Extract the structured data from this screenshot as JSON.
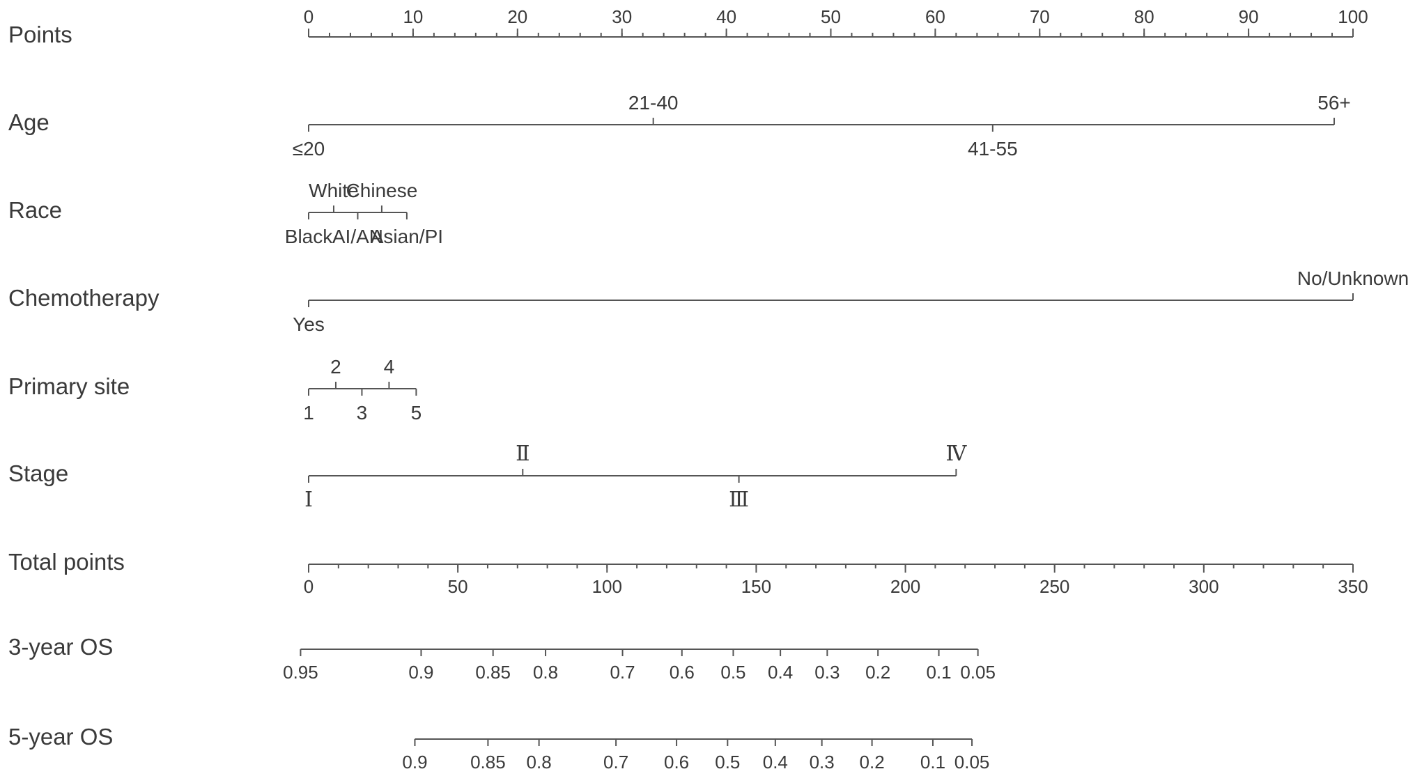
{
  "chart_data": {
    "type": "nomogram",
    "rows": [
      {
        "label": "Points",
        "kind": "points",
        "min": 0,
        "max": 100,
        "major_ticks": [
          "0",
          "10",
          "20",
          "30",
          "40",
          "50",
          "60",
          "70",
          "80",
          "90",
          "100"
        ],
        "minor_step": 2
      },
      {
        "label": "Age",
        "kind": "variable",
        "levels": [
          {
            "label": "≤20",
            "points": 0,
            "side": "below"
          },
          {
            "label": "21-40",
            "points": 33,
            "side": "above"
          },
          {
            "label": "41-55",
            "points": 65.5,
            "side": "below"
          },
          {
            "label": "56+",
            "points": 98.2,
            "side": "above"
          }
        ]
      },
      {
        "label": "Race",
        "kind": "variable",
        "levels": [
          {
            "label": "Black",
            "points": 0,
            "side": "below"
          },
          {
            "label": "White",
            "points": 2.4,
            "side": "above"
          },
          {
            "label": "AI/AN",
            "points": 4.7,
            "side": "below"
          },
          {
            "label": "Chinese",
            "points": 7.0,
            "side": "above"
          },
          {
            "label": "Asian/PI",
            "points": 9.4,
            "side": "below"
          }
        ]
      },
      {
        "label": "Chemotherapy",
        "kind": "variable",
        "levels": [
          {
            "label": "Yes",
            "points": 0,
            "side": "below"
          },
          {
            "label": "No/Unknown",
            "points": 100,
            "side": "above"
          }
        ]
      },
      {
        "label": "Primary site",
        "kind": "variable",
        "levels": [
          {
            "label": "1",
            "points": 0,
            "side": "below"
          },
          {
            "label": "2",
            "points": 2.6,
            "side": "above"
          },
          {
            "label": "3",
            "points": 5.1,
            "side": "below"
          },
          {
            "label": "4",
            "points": 7.7,
            "side": "above"
          },
          {
            "label": "5",
            "points": 10.3,
            "side": "below"
          }
        ]
      },
      {
        "label": "Stage",
        "kind": "variable",
        "levels": [
          {
            "label": "Ⅰ",
            "points": 0,
            "side": "below"
          },
          {
            "label": "Ⅱ",
            "points": 20.5,
            "side": "above"
          },
          {
            "label": "Ⅲ",
            "points": 41.2,
            "side": "below"
          },
          {
            "label": "Ⅳ",
            "points": 62,
            "side": "above"
          }
        ]
      },
      {
        "label": "Total points",
        "kind": "total",
        "min": 0,
        "max": 350,
        "major_ticks": [
          "0",
          "50",
          "100",
          "150",
          "200",
          "250",
          "300",
          "350"
        ],
        "minor_step": 10
      },
      {
        "label": "3-year OS",
        "kind": "probability",
        "ticks": [
          {
            "label": "0.95",
            "total_points": -2.7
          },
          {
            "label": "0.9",
            "total_points": 37.7
          },
          {
            "label": "0.85",
            "total_points": 61.8
          },
          {
            "label": "0.8",
            "total_points": 79.4
          },
          {
            "label": "0.7",
            "total_points": 105.2
          },
          {
            "label": "0.6",
            "total_points": 125.1
          },
          {
            "label": "0.5",
            "total_points": 142.3
          },
          {
            "label": "0.4",
            "total_points": 158.1
          },
          {
            "label": "0.3",
            "total_points": 173.8
          },
          {
            "label": "0.2",
            "total_points": 190.8
          },
          {
            "label": "0.1",
            "total_points": 211.2
          },
          {
            "label": "0.05",
            "total_points": 224.3
          }
        ]
      },
      {
        "label": "5-year OS",
        "kind": "probability",
        "ticks": [
          {
            "label": "0.9",
            "total_points": 35.6
          },
          {
            "label": "0.85",
            "total_points": 60.1
          },
          {
            "label": "0.8",
            "total_points": 77.2
          },
          {
            "label": "0.7",
            "total_points": 103.0
          },
          {
            "label": "0.6",
            "total_points": 123.3
          },
          {
            "label": "0.5",
            "total_points": 140.4
          },
          {
            "label": "0.4",
            "total_points": 156.4
          },
          {
            "label": "0.3",
            "total_points": 172.0
          },
          {
            "label": "0.2",
            "total_points": 188.8
          },
          {
            "label": "0.1",
            "total_points": 209.2
          },
          {
            "label": "0.05",
            "total_points": 222.3
          }
        ]
      }
    ]
  }
}
